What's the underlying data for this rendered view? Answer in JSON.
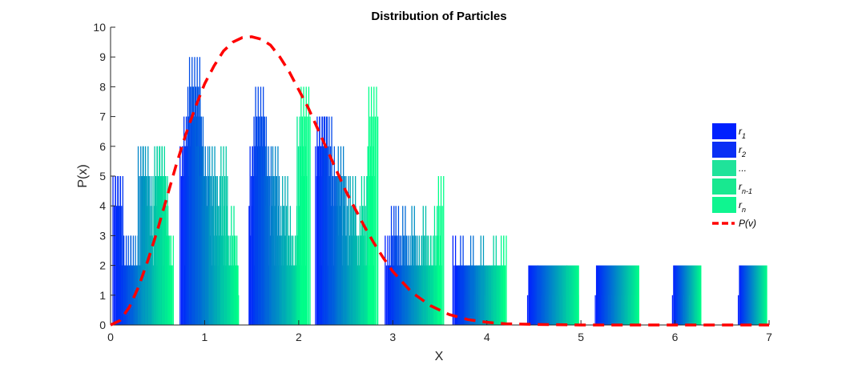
{
  "chart_data": {
    "type": "bar",
    "title": "Distribution of Particles",
    "xlabel": "X",
    "ylabel": "P(x)",
    "xlim": [
      0,
      7
    ],
    "ylim": [
      0,
      10
    ],
    "xticks": [
      "0",
      "1",
      "2",
      "3",
      "4",
      "5",
      "6",
      "7"
    ],
    "yticks": [
      "0",
      "1",
      "2",
      "3",
      "4",
      "5",
      "6",
      "7",
      "8",
      "9",
      "10"
    ],
    "grid": false,
    "legend_position": "right",
    "legend": [
      {
        "base": "r",
        "sub": "1",
        "color": "#0020ff"
      },
      {
        "base": "r",
        "sub": "2",
        "color": "#0a2ff5"
      },
      {
        "base": "...",
        "sub": "",
        "color": "#1fe39a"
      },
      {
        "base": "r",
        "sub": "n-1",
        "color": "#18e890"
      },
      {
        "base": "r",
        "sub": "n",
        "color": "#0ff590"
      },
      {
        "base": "P(v)",
        "sub": "",
        "color": "#ff0000",
        "style": "dashed"
      }
    ],
    "colors": {
      "start": "#0020ff",
      "end": "#00ff88",
      "curve": "#ff0000"
    },
    "series": [
      {
        "x_range": [
          0.06,
          0.66
        ],
        "max_values": [
          5,
          5,
          5,
          3,
          3,
          2,
          3,
          3,
          2,
          3,
          2,
          6,
          5,
          6,
          5,
          4,
          3,
          5,
          6,
          6,
          6,
          5,
          4,
          3,
          3
        ]
      },
      {
        "x_range": [
          0.78,
          1.36
        ],
        "max_values": [
          6,
          6,
          7,
          7,
          8,
          9,
          8,
          7,
          6,
          5,
          6,
          5,
          4,
          6,
          4,
          5,
          4,
          3,
          6,
          4,
          3,
          2,
          4,
          3,
          2
        ]
      },
      {
        "x_range": [
          1.5,
          2.08
        ],
        "max_values": [
          4,
          6,
          6,
          7,
          8,
          7,
          6,
          5,
          6,
          4,
          5,
          6,
          4,
          3,
          4,
          5,
          3,
          4,
          2,
          3,
          3,
          4,
          7,
          6,
          8
        ]
      },
      {
        "x_range": [
          2.22,
          2.8
        ],
        "max_values": [
          6,
          7,
          7,
          6,
          7,
          5,
          6,
          5,
          4,
          5,
          6,
          4,
          5,
          3,
          4,
          5,
          4,
          3,
          3,
          4,
          5,
          3,
          2,
          6,
          8
        ]
      },
      {
        "x_range": [
          2.94,
          3.52
        ],
        "max_values": [
          3,
          2,
          3,
          4,
          3,
          4,
          2,
          3,
          4,
          3,
          2,
          3,
          4,
          3,
          2,
          3,
          3,
          4,
          2,
          3,
          3,
          2,
          4,
          3,
          5
        ]
      },
      {
        "x_range": [
          3.66,
          4.2
        ],
        "max_values": [
          3,
          1,
          2,
          3,
          1,
          2,
          2,
          3,
          1,
          2,
          2,
          3,
          1,
          2,
          2,
          2,
          3,
          2,
          1,
          3,
          3
        ]
      },
      {
        "x_range": [
          4.44,
          4.98
        ],
        "max_values": [
          1,
          1,
          0,
          2,
          1,
          1,
          1,
          1,
          1,
          1,
          1,
          2,
          1,
          1,
          1
        ]
      },
      {
        "x_range": [
          5.16,
          5.62
        ],
        "max_values": [
          1,
          1,
          1,
          1,
          1,
          1,
          1,
          1,
          1,
          1,
          1,
          1,
          1,
          1
        ]
      },
      {
        "x_range": [
          5.98,
          6.28
        ],
        "max_values": [
          1,
          1,
          1,
          1,
          1,
          1
        ]
      },
      {
        "x_range": [
          6.68,
          6.98
        ],
        "max_values": [
          1,
          0,
          0,
          1
        ]
      }
    ],
    "curve": {
      "name": "P(v)",
      "x": [
        0,
        0.1,
        0.2,
        0.3,
        0.4,
        0.5,
        0.6,
        0.7,
        0.8,
        0.9,
        1.0,
        1.1,
        1.2,
        1.3,
        1.4,
        1.5,
        1.6,
        1.7,
        1.8,
        1.9,
        2.0,
        2.1,
        2.2,
        2.3,
        2.4,
        2.5,
        2.6,
        2.7,
        2.8,
        2.9,
        3.0,
        3.2,
        3.4,
        3.6,
        3.8,
        4.0,
        4.2,
        4.5,
        5.0,
        5.5,
        6.0,
        6.5,
        7.0
      ],
      "y": [
        0,
        0.15,
        0.6,
        1.3,
        2.2,
        3.2,
        4.3,
        5.4,
        6.4,
        7.3,
        8.1,
        8.7,
        9.2,
        9.5,
        9.65,
        9.68,
        9.6,
        9.4,
        9.0,
        8.5,
        7.9,
        7.3,
        6.6,
        5.9,
        5.2,
        4.5,
        3.9,
        3.3,
        2.75,
        2.25,
        1.8,
        1.1,
        0.65,
        0.35,
        0.18,
        0.09,
        0.04,
        0.02,
        0.0,
        0.0,
        0.0,
        0.0,
        0.0
      ]
    }
  }
}
